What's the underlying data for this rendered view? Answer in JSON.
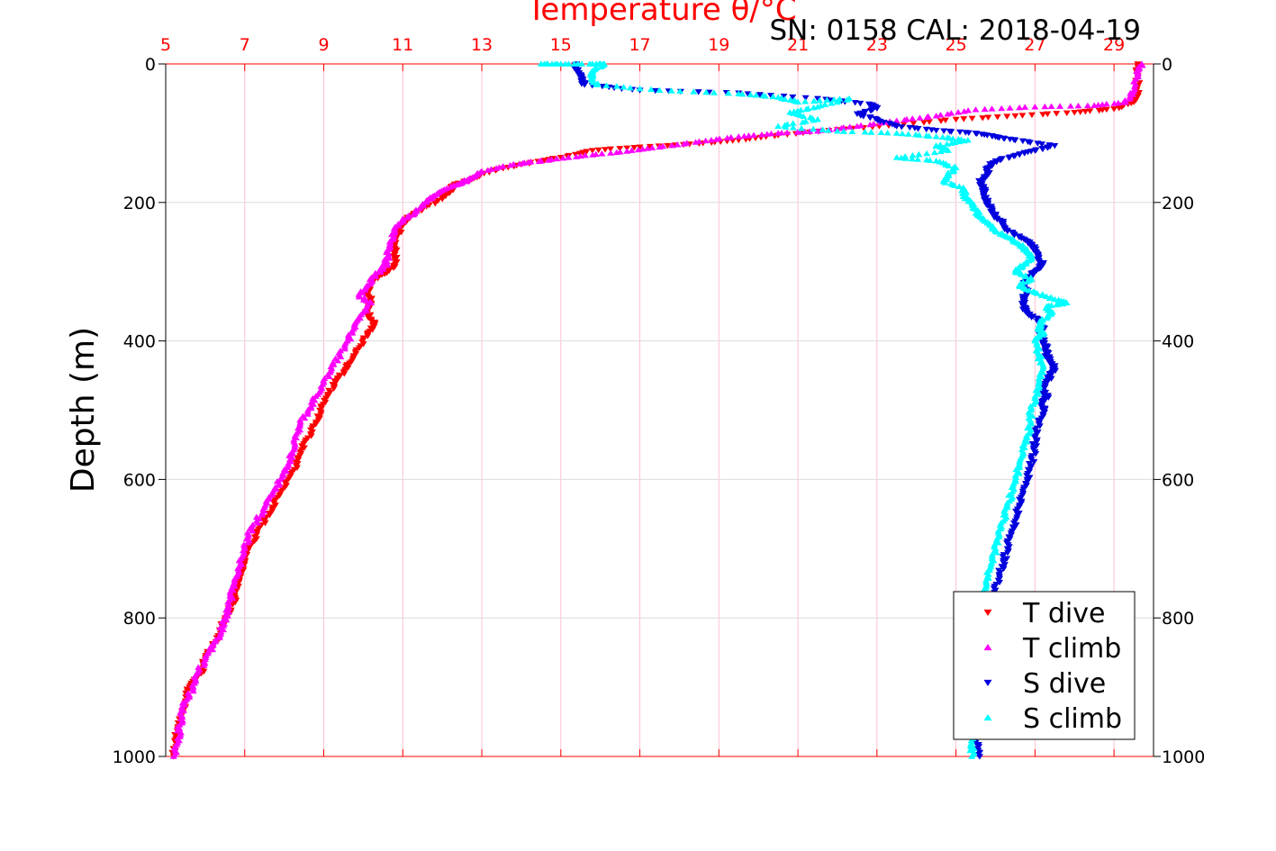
{
  "chart_data": {
    "type": "scatter",
    "title": "Temperature θ/°C",
    "annotation": "SN: 0158  CAL: 2018-04-19",
    "ylabel": "Depth (m)",
    "xlabel": "",
    "xlim": [
      5,
      30
    ],
    "ylim": [
      1000,
      0
    ],
    "x_ticks": [
      "5",
      "7",
      "9",
      "11",
      "13",
      "15",
      "17",
      "19",
      "21",
      "23",
      "25",
      "27",
      "29"
    ],
    "y_ticks": [
      "0",
      "200",
      "400",
      "600",
      "800",
      "1000"
    ],
    "grid": true,
    "legend_position": "bottom-right",
    "colors": {
      "axis": "#ff0000",
      "t_dive": "#ff0000",
      "t_climb": "#ff00ff",
      "s_dive": "#0000dd",
      "s_climb": "#00ffff"
    },
    "series": [
      {
        "name": "T dive",
        "marker": "triangle-down",
        "color": "#ff0000",
        "points": [
          [
            29.6,
            0
          ],
          [
            29.6,
            20
          ],
          [
            29.6,
            45
          ],
          [
            29.5,
            55
          ],
          [
            29.0,
            65
          ],
          [
            28.0,
            70
          ],
          [
            26.5,
            75
          ],
          [
            25.0,
            80
          ],
          [
            23.5,
            88
          ],
          [
            22.0,
            95
          ],
          [
            20.5,
            103
          ],
          [
            19.5,
            110
          ],
          [
            18.5,
            115
          ],
          [
            17.0,
            120
          ],
          [
            15.8,
            125
          ],
          [
            15.0,
            135
          ],
          [
            14.0,
            145
          ],
          [
            13.2,
            155
          ],
          [
            12.8,
            165
          ],
          [
            12.3,
            175
          ],
          [
            12.2,
            185
          ],
          [
            12.0,
            195
          ],
          [
            11.5,
            210
          ],
          [
            11.2,
            220
          ],
          [
            11.0,
            230
          ],
          [
            10.9,
            245
          ],
          [
            10.8,
            260
          ],
          [
            10.8,
            275
          ],
          [
            10.8,
            290
          ],
          [
            10.6,
            300
          ],
          [
            10.4,
            305
          ],
          [
            10.2,
            315
          ],
          [
            10.1,
            330
          ],
          [
            10.2,
            345
          ],
          [
            10.1,
            360
          ],
          [
            10.3,
            375
          ],
          [
            10.1,
            390
          ],
          [
            9.9,
            410
          ],
          [
            9.7,
            430
          ],
          [
            9.5,
            445
          ],
          [
            9.3,
            460
          ],
          [
            9.1,
            480
          ],
          [
            8.9,
            500
          ],
          [
            8.8,
            520
          ],
          [
            8.6,
            540
          ],
          [
            8.4,
            560
          ],
          [
            8.3,
            580
          ],
          [
            8.1,
            600
          ],
          [
            7.9,
            620
          ],
          [
            7.7,
            640
          ],
          [
            7.5,
            660
          ],
          [
            7.3,
            680
          ],
          [
            7.1,
            700
          ],
          [
            7.0,
            720
          ],
          [
            6.9,
            740
          ],
          [
            6.8,
            760
          ],
          [
            6.7,
            780
          ],
          [
            6.5,
            800
          ],
          [
            6.4,
            820
          ],
          [
            6.2,
            840
          ],
          [
            6.0,
            860
          ],
          [
            5.9,
            880
          ],
          [
            5.6,
            900
          ],
          [
            5.5,
            920
          ],
          [
            5.4,
            940
          ],
          [
            5.3,
            960
          ],
          [
            5.25,
            980
          ],
          [
            5.2,
            1000
          ]
        ]
      },
      {
        "name": "T climb",
        "marker": "triangle-up",
        "color": "#ff00ff",
        "points": [
          [
            29.7,
            0
          ],
          [
            29.6,
            15
          ],
          [
            29.5,
            40
          ],
          [
            29.3,
            55
          ],
          [
            28.5,
            60
          ],
          [
            27.0,
            62
          ],
          [
            25.5,
            66
          ],
          [
            24.5,
            75
          ],
          [
            23.5,
            82
          ],
          [
            22.5,
            90
          ],
          [
            21.5,
            97
          ],
          [
            20.5,
            100
          ],
          [
            19.5,
            105
          ],
          [
            18.5,
            112
          ],
          [
            17.5,
            120
          ],
          [
            16.5,
            127
          ],
          [
            15.5,
            133
          ],
          [
            14.5,
            140
          ],
          [
            13.8,
            145
          ],
          [
            13.0,
            155
          ],
          [
            12.7,
            165
          ],
          [
            12.5,
            172
          ],
          [
            12.2,
            178
          ],
          [
            11.8,
            190
          ],
          [
            11.6,
            200
          ],
          [
            11.3,
            215
          ],
          [
            11.0,
            225
          ],
          [
            10.8,
            240
          ],
          [
            10.7,
            255
          ],
          [
            10.6,
            270
          ],
          [
            10.6,
            285
          ],
          [
            10.5,
            295
          ],
          [
            10.3,
            305
          ],
          [
            10.1,
            320
          ],
          [
            9.9,
            335
          ],
          [
            10.2,
            345
          ],
          [
            9.9,
            365
          ],
          [
            9.8,
            380
          ],
          [
            9.6,
            400
          ],
          [
            9.4,
            420
          ],
          [
            9.2,
            440
          ],
          [
            9.0,
            460
          ],
          [
            8.8,
            480
          ],
          [
            8.6,
            500
          ],
          [
            8.4,
            520
          ],
          [
            8.3,
            540
          ],
          [
            8.2,
            560
          ],
          [
            8.1,
            580
          ],
          [
            7.9,
            600
          ],
          [
            7.7,
            620
          ],
          [
            7.5,
            640
          ],
          [
            7.3,
            660
          ],
          [
            7.1,
            680
          ],
          [
            7.0,
            700
          ],
          [
            6.9,
            720
          ],
          [
            6.8,
            740
          ],
          [
            6.7,
            760
          ],
          [
            6.6,
            780
          ],
          [
            6.5,
            800
          ],
          [
            6.4,
            820
          ],
          [
            6.2,
            840
          ],
          [
            6.0,
            860
          ],
          [
            5.8,
            880
          ],
          [
            5.7,
            900
          ],
          [
            5.5,
            920
          ],
          [
            5.4,
            940
          ],
          [
            5.35,
            960
          ],
          [
            5.3,
            980
          ],
          [
            5.2,
            1000
          ]
        ]
      },
      {
        "name": "S dive",
        "marker": "triangle-down",
        "color": "#0000dd",
        "points": [
          [
            15.4,
            0
          ],
          [
            15.4,
            10
          ],
          [
            15.5,
            20
          ],
          [
            15.6,
            30
          ],
          [
            17.0,
            38
          ],
          [
            19.5,
            42
          ],
          [
            21.5,
            50
          ],
          [
            22.8,
            58
          ],
          [
            23.0,
            64
          ],
          [
            22.5,
            72
          ],
          [
            23.0,
            80
          ],
          [
            23.5,
            90
          ],
          [
            24.5,
            96
          ],
          [
            25.5,
            100
          ],
          [
            26.0,
            105
          ],
          [
            26.5,
            110
          ],
          [
            27.5,
            118
          ],
          [
            27.0,
            125
          ],
          [
            26.5,
            132
          ],
          [
            26.0,
            140
          ],
          [
            25.8,
            150
          ],
          [
            25.8,
            160
          ],
          [
            25.6,
            170
          ],
          [
            25.7,
            180
          ],
          [
            25.7,
            190
          ],
          [
            25.8,
            200
          ],
          [
            25.9,
            210
          ],
          [
            26.0,
            220
          ],
          [
            26.2,
            230
          ],
          [
            26.3,
            240
          ],
          [
            26.6,
            250
          ],
          [
            26.9,
            260
          ],
          [
            27.0,
            270
          ],
          [
            27.1,
            280
          ],
          [
            27.2,
            290
          ],
          [
            27.0,
            300
          ],
          [
            26.8,
            310
          ],
          [
            26.7,
            320
          ],
          [
            26.8,
            330
          ],
          [
            26.7,
            340
          ],
          [
            26.7,
            350
          ],
          [
            26.8,
            360
          ],
          [
            27.1,
            370
          ],
          [
            27.2,
            380
          ],
          [
            27.1,
            390
          ],
          [
            27.2,
            400
          ],
          [
            27.3,
            410
          ],
          [
            27.3,
            420
          ],
          [
            27.4,
            430
          ],
          [
            27.5,
            440
          ],
          [
            27.4,
            450
          ],
          [
            27.3,
            460
          ],
          [
            27.2,
            470
          ],
          [
            27.3,
            480
          ],
          [
            27.2,
            490
          ],
          [
            27.2,
            500
          ],
          [
            27.1,
            520
          ],
          [
            27.0,
            540
          ],
          [
            27.0,
            560
          ],
          [
            26.9,
            580
          ],
          [
            26.8,
            600
          ],
          [
            26.7,
            620
          ],
          [
            26.6,
            640
          ],
          [
            26.5,
            660
          ],
          [
            26.4,
            680
          ],
          [
            26.3,
            700
          ],
          [
            26.2,
            720
          ],
          [
            26.1,
            740
          ],
          [
            26.0,
            760
          ],
          [
            25.9,
            780
          ],
          [
            25.8,
            800
          ],
          [
            25.8,
            820
          ],
          [
            25.7,
            840
          ],
          [
            25.7,
            860
          ],
          [
            25.6,
            880
          ],
          [
            25.6,
            900
          ],
          [
            25.6,
            920
          ],
          [
            25.5,
            940
          ],
          [
            25.5,
            960
          ],
          [
            25.5,
            980
          ],
          [
            25.6,
            1000
          ]
        ]
      },
      {
        "name": "S climb",
        "marker": "triangle-up",
        "color": "#00ffff",
        "points": [
          [
            14.5,
            0
          ],
          [
            15.0,
            0
          ],
          [
            15.8,
            0
          ],
          [
            16.1,
            0
          ],
          [
            15.8,
            10
          ],
          [
            15.8,
            20
          ],
          [
            15.9,
            30
          ],
          [
            17.5,
            38
          ],
          [
            19.5,
            43
          ],
          [
            20.5,
            48
          ],
          [
            21.0,
            55
          ],
          [
            22.3,
            50
          ],
          [
            21.5,
            62
          ],
          [
            20.8,
            70
          ],
          [
            21.5,
            80
          ],
          [
            20.5,
            90
          ],
          [
            22.0,
            97
          ],
          [
            23.5,
            100
          ],
          [
            24.5,
            105
          ],
          [
            25.3,
            110
          ],
          [
            24.5,
            118
          ],
          [
            24.8,
            125
          ],
          [
            23.5,
            135
          ],
          [
            24.5,
            140
          ],
          [
            25.0,
            150
          ],
          [
            24.8,
            160
          ],
          [
            24.7,
            170
          ],
          [
            25.2,
            180
          ],
          [
            25.2,
            190
          ],
          [
            25.4,
            200
          ],
          [
            25.5,
            210
          ],
          [
            25.6,
            220
          ],
          [
            25.8,
            230
          ],
          [
            26.0,
            240
          ],
          [
            26.3,
            250
          ],
          [
            26.6,
            260
          ],
          [
            26.8,
            270
          ],
          [
            26.9,
            280
          ],
          [
            26.7,
            290
          ],
          [
            26.5,
            300
          ],
          [
            26.9,
            310
          ],
          [
            26.6,
            320
          ],
          [
            27.0,
            330
          ],
          [
            27.5,
            340
          ],
          [
            27.8,
            345
          ],
          [
            27.3,
            350
          ],
          [
            27.4,
            360
          ],
          [
            27.2,
            370
          ],
          [
            27.1,
            380
          ],
          [
            27.2,
            390
          ],
          [
            27.0,
            400
          ],
          [
            27.1,
            420
          ],
          [
            27.2,
            440
          ],
          [
            27.1,
            460
          ],
          [
            27.0,
            480
          ],
          [
            26.9,
            500
          ],
          [
            26.9,
            520
          ],
          [
            26.8,
            540
          ],
          [
            26.7,
            560
          ],
          [
            26.6,
            580
          ],
          [
            26.5,
            600
          ],
          [
            26.4,
            620
          ],
          [
            26.3,
            640
          ],
          [
            26.2,
            660
          ],
          [
            26.1,
            680
          ],
          [
            26.0,
            700
          ],
          [
            25.9,
            720
          ],
          [
            25.8,
            740
          ],
          [
            25.7,
            760
          ],
          [
            25.7,
            780
          ],
          [
            25.6,
            800
          ],
          [
            25.6,
            820
          ],
          [
            25.6,
            840
          ],
          [
            25.5,
            860
          ],
          [
            25.5,
            880
          ],
          [
            25.5,
            900
          ],
          [
            25.5,
            920
          ],
          [
            25.4,
            940
          ],
          [
            25.4,
            960
          ],
          [
            25.4,
            980
          ],
          [
            25.4,
            1000
          ]
        ]
      }
    ]
  }
}
